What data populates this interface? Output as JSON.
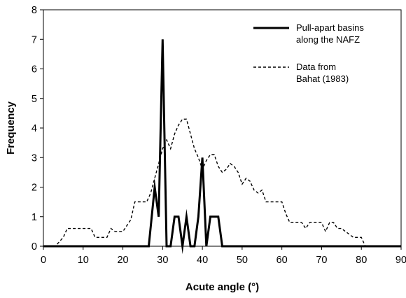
{
  "chart_data": {
    "type": "line",
    "title": "",
    "xlabel": "Acute angle (°)",
    "ylabel": "Frequency",
    "xlim": [
      0,
      90
    ],
    "ylim": [
      0,
      8
    ],
    "x_ticks": [
      "0",
      "10",
      "20",
      "30",
      "40",
      "50",
      "60",
      "70",
      "80",
      "90"
    ],
    "y_ticks": [
      "0",
      "1",
      "2",
      "3",
      "4",
      "5",
      "6",
      "7",
      "8"
    ],
    "grid": false,
    "legend_position": "top-right",
    "series": [
      {
        "name": "Pull-apart basins along the NAFZ",
        "legend_lines": [
          "Pull-apart basins",
          "along the NAFZ"
        ],
        "style": "solid",
        "color": "#000000",
        "x": [
          0,
          26.5,
          28,
          29,
          30,
          31,
          32,
          33,
          34,
          35,
          36,
          37,
          38,
          39,
          40,
          41,
          42,
          43,
          44,
          45,
          46,
          90
        ],
        "y": [
          0,
          0,
          2,
          1,
          7,
          0,
          0,
          1,
          1,
          0,
          1,
          0,
          0,
          1,
          3,
          0,
          1,
          1,
          1,
          0,
          0,
          0
        ]
      },
      {
        "name": "Data from Bahat (1983)",
        "legend_lines": [
          "Data from",
          "Bahat (1983)"
        ],
        "style": "dashed",
        "color": "#000000",
        "x": [
          0,
          3,
          5,
          6,
          12,
          13,
          16,
          17,
          18,
          20,
          22,
          23,
          26,
          27,
          28,
          29,
          30,
          31,
          32,
          33,
          34,
          35,
          36,
          37,
          38,
          39,
          40,
          41,
          42,
          43,
          44,
          45,
          46,
          47,
          48,
          49,
          50,
          51,
          52,
          53,
          54,
          55,
          56,
          57,
          58,
          59,
          60,
          61,
          62,
          65,
          66,
          67,
          70,
          71,
          72,
          73,
          74,
          75,
          76,
          78,
          80,
          81,
          90
        ],
        "y": [
          0,
          0,
          0.3,
          0.6,
          0.6,
          0.3,
          0.3,
          0.6,
          0.5,
          0.5,
          0.9,
          1.5,
          1.5,
          1.8,
          2.3,
          2.8,
          3.3,
          3.6,
          3.3,
          3.8,
          4.1,
          4.3,
          4.3,
          3.8,
          3.3,
          3.0,
          2.6,
          2.9,
          3.1,
          3.1,
          2.7,
          2.5,
          2.6,
          2.8,
          2.7,
          2.5,
          2.1,
          2.3,
          2.2,
          1.9,
          1.8,
          1.9,
          1.5,
          1.5,
          1.5,
          1.5,
          1.5,
          1.1,
          0.8,
          0.8,
          0.6,
          0.8,
          0.8,
          0.5,
          0.8,
          0.8,
          0.6,
          0.6,
          0.5,
          0.3,
          0.3,
          0,
          0
        ]
      }
    ]
  }
}
